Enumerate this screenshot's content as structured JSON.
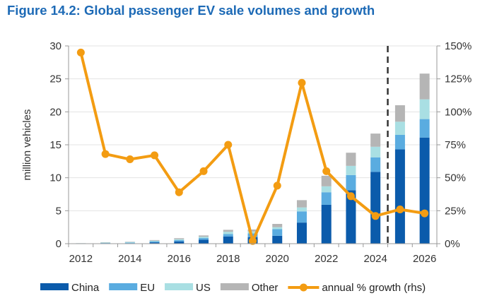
{
  "figure_title": "Figure 14.2: Global passenger EV sale volumes and growth",
  "chart_data": {
    "type": "bar",
    "subtype": "stacked bar with line on secondary axis",
    "title": "Figure 14.2: Global passenger EV sale volumes and growth",
    "ylabel": "million vehicles",
    "ylim": [
      0,
      30
    ],
    "yticks": [
      "0",
      "5",
      "10",
      "15",
      "20",
      "25",
      "30"
    ],
    "y2lim": [
      0,
      150
    ],
    "y2ticks": [
      "0%",
      "25%",
      "50%",
      "75%",
      "100%",
      "125%",
      "150%"
    ],
    "categories": [
      "2012",
      "2013",
      "2014",
      "2015",
      "2016",
      "2017",
      "2018",
      "2019",
      "2020",
      "2021",
      "2022",
      "2023",
      "2024",
      "2025",
      "2026"
    ],
    "xticks": [
      "2012",
      "2014",
      "2016",
      "2018",
      "2020",
      "2022",
      "2024",
      "2026"
    ],
    "series": [
      {
        "name": "China",
        "color": "#0b5bab",
        "values": [
          0.02,
          0.05,
          0.07,
          0.2,
          0.35,
          0.6,
          1.1,
          1.0,
          1.2,
          3.2,
          5.9,
          8.1,
          10.9,
          14.3,
          16.1
        ]
      },
      {
        "name": "EU",
        "color": "#5aace0",
        "values": [
          0.02,
          0.05,
          0.08,
          0.15,
          0.18,
          0.25,
          0.35,
          0.55,
          1.0,
          1.7,
          1.9,
          2.3,
          2.2,
          2.2,
          2.8
        ]
      },
      {
        "name": "US",
        "color": "#a9dfe3",
        "values": [
          0.03,
          0.07,
          0.1,
          0.1,
          0.15,
          0.2,
          0.35,
          0.3,
          0.3,
          0.6,
          0.9,
          1.4,
          1.6,
          2.0,
          3.0
        ]
      },
      {
        "name": "Other",
        "color": "#b5b5b5",
        "values": [
          0.01,
          0.05,
          0.05,
          0.1,
          0.15,
          0.2,
          0.3,
          0.3,
          0.5,
          1.1,
          1.6,
          2.0,
          2.0,
          2.5,
          3.9
        ]
      }
    ],
    "line_series": {
      "name": "annual % growth (rhs)",
      "color": "#f39c12",
      "values": [
        145,
        68,
        64,
        67,
        39,
        55,
        75,
        2,
        44,
        122,
        55,
        36,
        21,
        26,
        23
      ]
    },
    "forecast_divider_after": "2024",
    "legend_position": "bottom"
  }
}
